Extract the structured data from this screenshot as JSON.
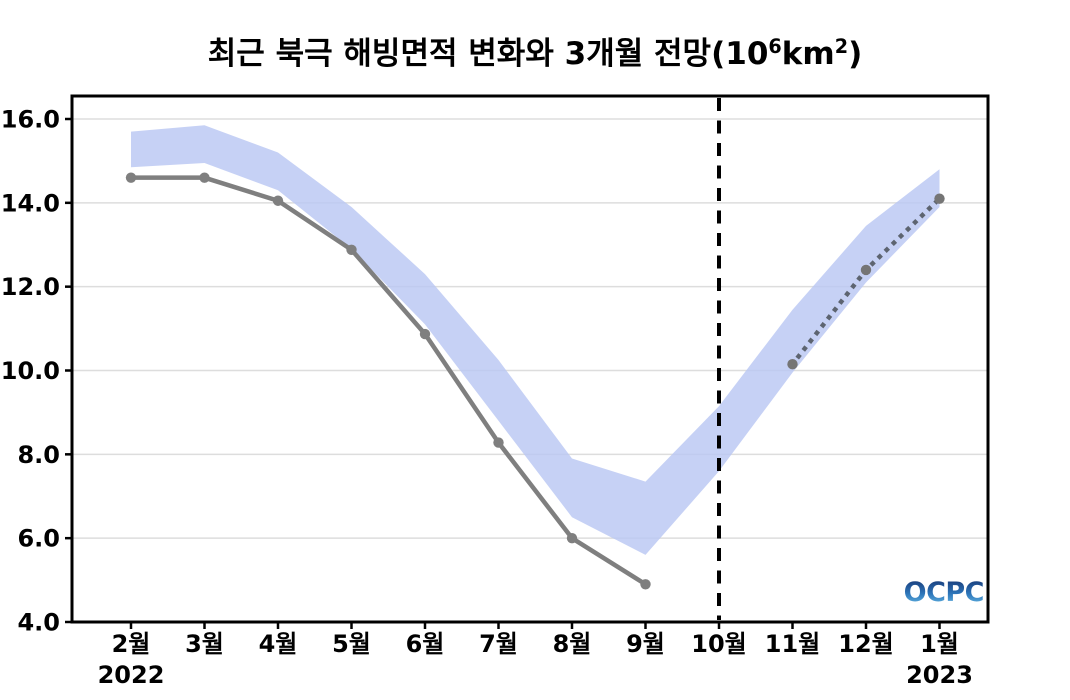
{
  "title": {
    "full": "최근 북극 해빙면적 변화와 3개월 전망(10⁶km²)",
    "parts": [
      {
        "text": "최근 북극 해빙면적 변화와 3개월 전망(10"
      },
      {
        "text": "6"
      },
      {
        "text": "km"
      },
      {
        "text": "2"
      },
      {
        "text": ")"
      }
    ]
  },
  "watermark": {
    "text": "OCPC",
    "gradient": [
      "#15316e",
      "#2e77bb",
      "#6fc3ea"
    ]
  },
  "chart_data": {
    "type": "line",
    "title": "최근 북극 해빙면적 변화와 3개월 전망(10^6 km^2)",
    "categories": [
      "2월",
      "3월",
      "4월",
      "5월",
      "6월",
      "7월",
      "8월",
      "9월",
      "10월",
      "11월",
      "12월",
      "1월"
    ],
    "year_labels": [
      {
        "index": 0,
        "label": "2022"
      },
      {
        "index": 11,
        "label": "2023"
      }
    ],
    "ylim": [
      4.0,
      16.55
    ],
    "yticks": [
      16.0,
      14.0,
      12.0,
      10.0,
      8.0,
      6.0,
      4.0
    ],
    "grid": true,
    "legend": "none",
    "series": [
      {
        "name": "climatology-band",
        "type": "band",
        "upper": [
          15.7,
          15.85,
          15.2,
          13.9,
          12.3,
          10.25,
          7.9,
          7.35,
          9.15,
          11.45,
          13.45,
          14.8
        ],
        "lower": [
          14.85,
          14.95,
          14.3,
          12.9,
          11.1,
          8.8,
          6.5,
          5.6,
          7.6,
          9.95,
          12.1,
          13.9
        ],
        "color": "#b9c7f3",
        "opacity": 0.82
      },
      {
        "name": "observed-sea-ice-extent",
        "type": "line-solid",
        "values": [
          14.6,
          14.6,
          14.05,
          12.88,
          10.87,
          8.28,
          6.0,
          4.9,
          null,
          null,
          null,
          null
        ],
        "color": "#7f7f7f"
      },
      {
        "name": "forecast-3month",
        "type": "line-dotted",
        "values": [
          null,
          null,
          null,
          null,
          null,
          null,
          null,
          null,
          null,
          10.15,
          12.4,
          14.1
        ],
        "color": "#5d6470",
        "marker_color": "#757575"
      }
    ],
    "divider": {
      "category": "10월",
      "style": "dashed",
      "color": "#000000"
    },
    "colors": {
      "grid": "#dddddd",
      "spine": "#000000",
      "tick": "#000000",
      "label": "#000000"
    }
  }
}
